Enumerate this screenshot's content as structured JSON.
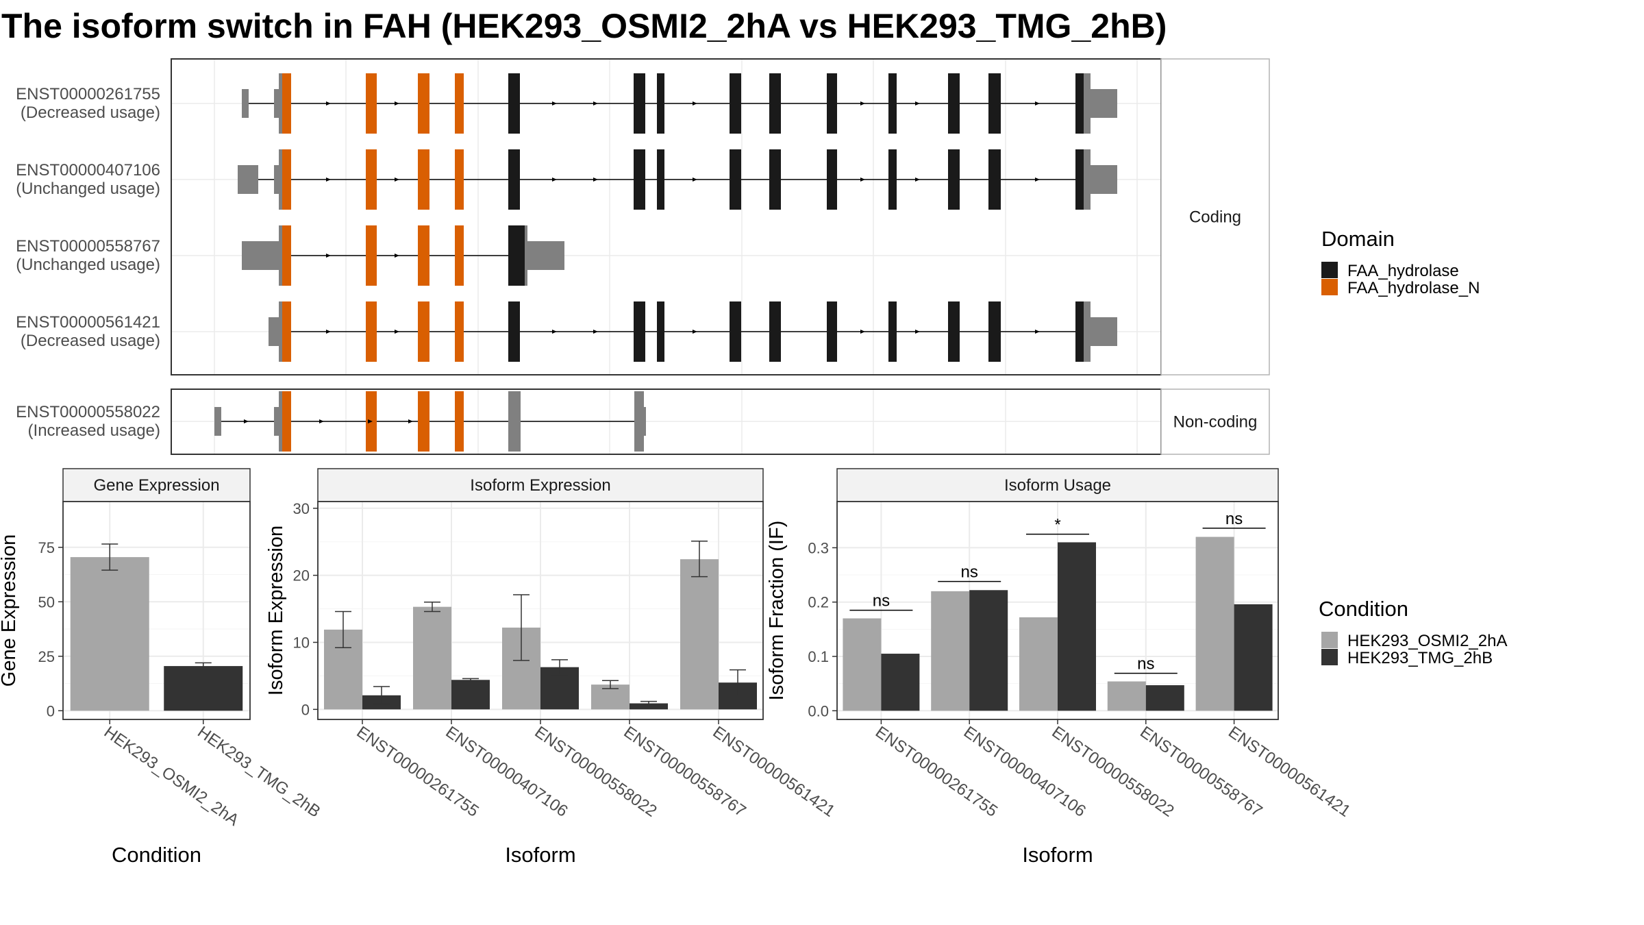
{
  "title": "The isoform switch in FAH (HEK293_OSMI2_2hA vs HEK293_TMG_2hB)",
  "colors": {
    "FAA_hydrolase": "#1a1a1a",
    "FAA_hydrolase_N": "#d95f02",
    "utr_grey": "#808080",
    "cond_A": "#a6a6a6",
    "cond_B": "#333333",
    "strip_bg": "#f2f2f2",
    "grid": "#ebebeb"
  },
  "structure": {
    "facets": [
      "Coding",
      "Non-coding"
    ],
    "tracks": [
      {
        "id": "ENST00000261755",
        "usage": "(Decreased usage)",
        "facet": "Coding"
      },
      {
        "id": "ENST00000407106",
        "usage": "(Unchanged usage)",
        "facet": "Coding"
      },
      {
        "id": "ENST00000558767",
        "usage": "(Unchanged usage)",
        "facet": "Coding"
      },
      {
        "id": "ENST00000561421",
        "usage": "(Decreased usage)",
        "facet": "Coding"
      },
      {
        "id": "ENST00000558022",
        "usage": "(Increased usage)",
        "facet": "Non-coding"
      }
    ],
    "domain_legend": {
      "title": "Domain",
      "items": [
        {
          "label": "FAA_hydrolase",
          "color": "#1a1a1a"
        },
        {
          "label": "FAA_hydrolase_N",
          "color": "#d95f02"
        }
      ]
    }
  },
  "condition_legend": {
    "title": "Condition",
    "items": [
      {
        "label": "HEK293_OSMI2_2hA",
        "color": "#a6a6a6"
      },
      {
        "label": "HEK293_TMG_2hB",
        "color": "#333333"
      }
    ]
  },
  "chart_data": [
    {
      "type": "bar",
      "title": "Gene Expression",
      "xlabel": "Condition",
      "ylabel": "Gene Expression",
      "ylim": [
        -4,
        96
      ],
      "yticks": [
        0,
        25,
        50,
        75
      ],
      "categories": [
        "HEK293_OSMI2_2hA",
        "HEK293_TMG_2hB"
      ],
      "values": [
        70.5,
        20.5
      ],
      "errors": [
        [
          64.5,
          76.5
        ],
        [
          19.0,
          22.0
        ]
      ]
    },
    {
      "type": "bar",
      "title": "Isoform Expression",
      "xlabel": "Isoform",
      "ylabel": "Isoform Expression",
      "ylim": [
        -1.5,
        31
      ],
      "yticks": [
        0,
        10,
        20,
        30
      ],
      "categories": [
        "ENST00000261755",
        "ENST00000407106",
        "ENST00000558022",
        "ENST00000558767",
        "ENST00000561421"
      ],
      "series": [
        {
          "name": "HEK293_OSMI2_2hA",
          "values": [
            11.9,
            15.3,
            12.2,
            3.7,
            22.4
          ],
          "errors": [
            [
              9.2,
              14.6
            ],
            [
              14.6,
              16.0
            ],
            [
              7.3,
              17.1
            ],
            [
              3.1,
              4.3
            ],
            [
              19.8,
              25.1
            ]
          ]
        },
        {
          "name": "HEK293_TMG_2hB",
          "values": [
            2.1,
            4.4,
            6.3,
            0.9,
            4.0
          ],
          "errors": [
            [
              0.8,
              3.4
            ],
            [
              4.2,
              4.6
            ],
            [
              5.2,
              7.4
            ],
            [
              0.6,
              1.2
            ],
            [
              2.0,
              5.9
            ]
          ]
        }
      ]
    },
    {
      "type": "bar",
      "title": "Isoform Usage",
      "xlabel": "Isoform",
      "ylabel": "Isoform Fraction (IF)",
      "ylim": [
        -0.016,
        0.385
      ],
      "yticks": [
        "0.0",
        "0.1",
        "0.2",
        "0.3"
      ],
      "categories": [
        "ENST00000261755",
        "ENST00000407106",
        "ENST00000558022",
        "ENST00000558767",
        "ENST00000561421"
      ],
      "series": [
        {
          "name": "HEK293_OSMI2_2hA",
          "values": [
            0.17,
            0.22,
            0.172,
            0.054,
            0.32
          ]
        },
        {
          "name": "HEK293_TMG_2hB",
          "values": [
            0.105,
            0.222,
            0.31,
            0.047,
            0.196
          ]
        }
      ],
      "significance": [
        "ns",
        "ns",
        "*",
        "ns",
        "ns"
      ],
      "significance_y": [
        0.185,
        0.238,
        0.325,
        0.069,
        0.336
      ]
    }
  ]
}
